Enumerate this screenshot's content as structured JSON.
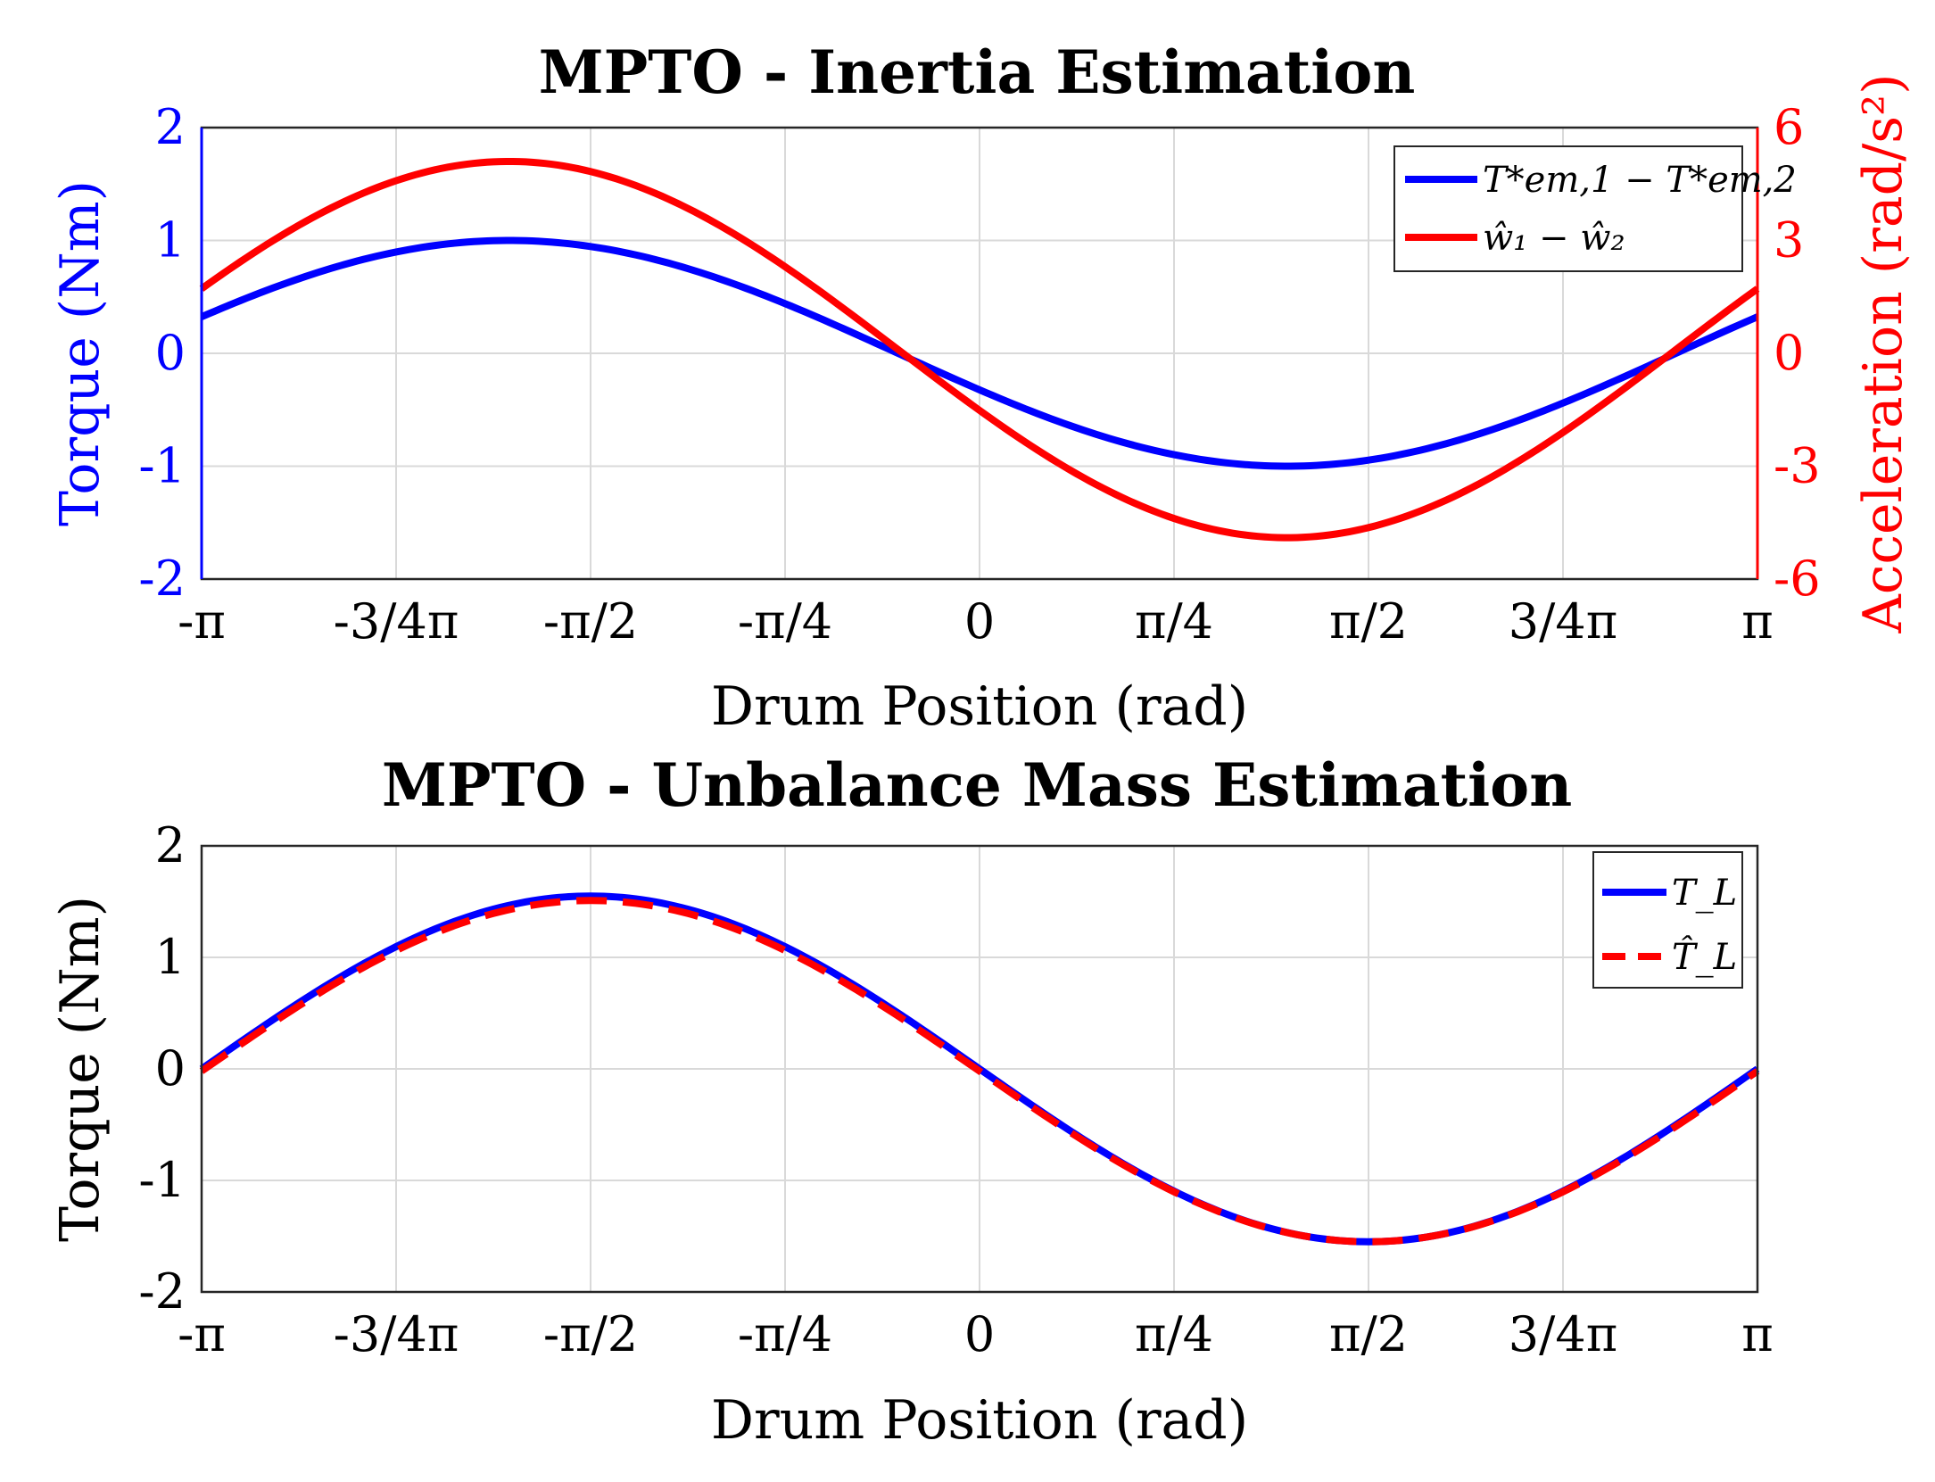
{
  "chart_data": [
    {
      "type": "line",
      "title": "MPTO - Inertia Estimation",
      "xlabel": "Drum Position (rad)",
      "ylabel_left": "Torque (Nm)",
      "ylabel_right": "Acceleration (rad/s²)",
      "xlim": [
        -3.14159,
        3.14159
      ],
      "ylim_left": [
        -2,
        2
      ],
      "ylim_right": [
        -6,
        6
      ],
      "x_ticks": [
        "-π",
        "-3/4π",
        "-π/2",
        "-π/4",
        "0",
        "π/4",
        "π/2",
        "3/4π",
        "π"
      ],
      "y_ticks_left": [
        "2",
        "1",
        "0",
        "-1",
        "-2"
      ],
      "y_ticks_right": [
        "6",
        "3",
        "0",
        "-3",
        "-6"
      ],
      "grid": true,
      "legend": "top-right",
      "axis_colors": {
        "left": "#0000ff",
        "right": "#ff0000"
      },
      "series": [
        {
          "name": "T*em,1 − T*em,2",
          "axis": "left",
          "color": "#0000ff",
          "style": "solid",
          "amplitude": 1.0,
          "peak_x": -1.9,
          "offset": 0.0
        },
        {
          "name": "ŵ₁ − ŵ₂",
          "axis": "right",
          "color": "#ff0000",
          "style": "solid",
          "amplitude": 5.0,
          "peak_x": -1.9,
          "offset": 0.1
        }
      ]
    },
    {
      "type": "line",
      "title": "MPTO - Unbalance Mass Estimation",
      "xlabel": "Drum Position (rad)",
      "ylabel": "Torque (Nm)",
      "xlim": [
        -3.14159,
        3.14159
      ],
      "ylim": [
        -2,
        2
      ],
      "x_ticks": [
        "-π",
        "-3/4π",
        "-π/2",
        "-π/4",
        "0",
        "π/4",
        "π/2",
        "3/4π",
        "π"
      ],
      "y_ticks": [
        "2",
        "1",
        "0",
        "-1",
        "-2"
      ],
      "grid": true,
      "legend": "top-right",
      "series": [
        {
          "name": "T_L",
          "color": "#0000ff",
          "style": "solid",
          "amplitude": 1.55,
          "peak_x": -1.5708,
          "offset": 0.0
        },
        {
          "name": "T̂_L",
          "color": "#ff0000",
          "style": "dashed",
          "amplitude": 1.53,
          "peak_x": -1.5708,
          "offset": -0.02
        }
      ]
    }
  ]
}
